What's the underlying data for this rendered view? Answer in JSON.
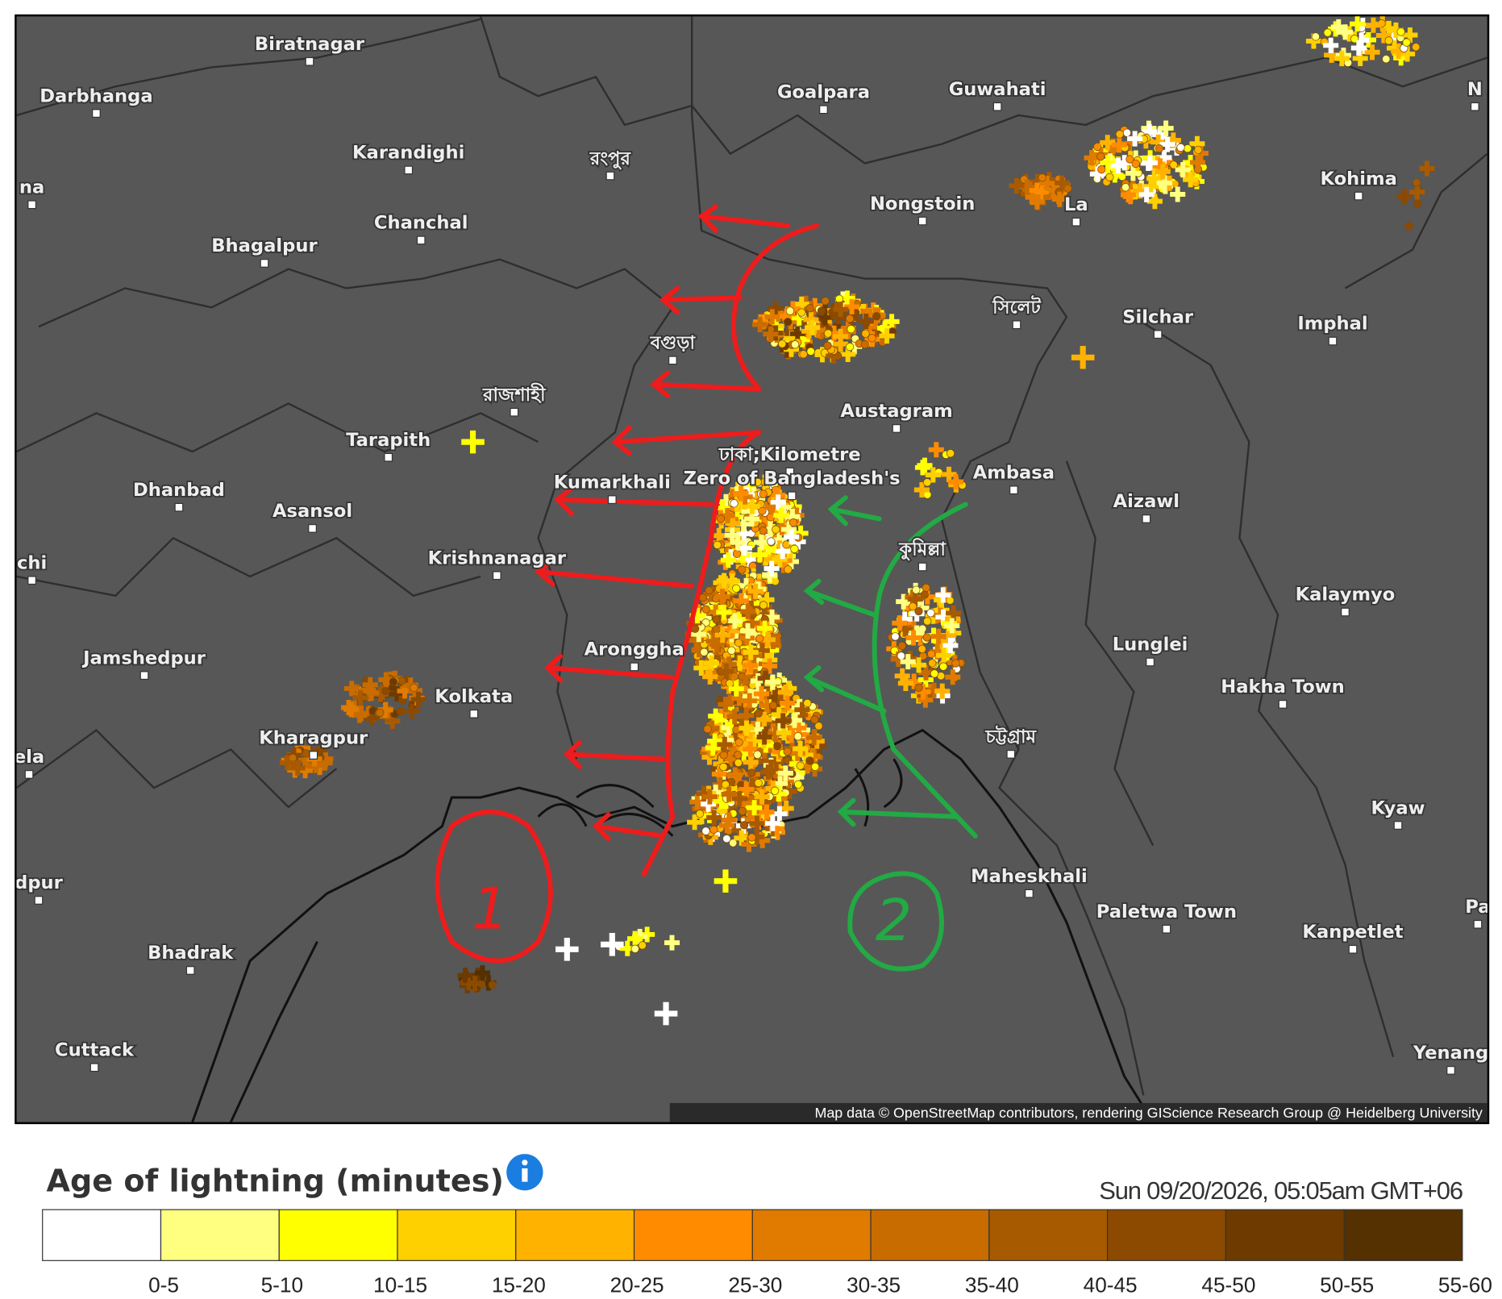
{
  "map": {
    "places": [
      "Biratnagar",
      "Darbhanga",
      "Goalpara",
      "Guwahati",
      "Karandighi",
      "রংপুর",
      "Nongstoin",
      "Kohima",
      "na",
      "Chanchal",
      "Bhagalpur",
      "La",
      "Silchar",
      "Imphal",
      "সিলেট",
      "বগুড়া",
      "রাজশাহী",
      "Austagram",
      "Tarapith",
      "ঢাকা;Kilometre",
      "Zero of Bangladesh's",
      "Kumarkhali",
      "Ambasa",
      "Dhanbad",
      "Asansol",
      "Aizawl",
      "কুমিল্লা",
      "Krishnanagar",
      "chi",
      "Kalaymyo",
      "Jamshedpur",
      "Lunglei",
      "Aronggha",
      "Kolkata",
      "Hakha Town",
      "Kharagpur",
      "চট্টগ্রাম",
      "ela",
      "Kyaw",
      "dpur",
      "Maheskhali",
      "Paletwa Town",
      "Kanpetlet",
      "Bhadrak",
      "Cuttack",
      "Yenang",
      "N",
      "Pa"
    ],
    "attribution": "Map data © OpenStreetMap contributors, rendering GIScience Research Group @ Heidelberg University",
    "annotations": [
      "1",
      "2"
    ]
  },
  "legend": {
    "title": "Age of lightning (minutes)",
    "timestamp": "Sun 09/20/2026, 05:05am GMT+06",
    "labels": [
      "0-5",
      "5-10",
      "10-15",
      "15-20",
      "20-25",
      "25-30",
      "30-35",
      "35-40",
      "40-45",
      "45-50",
      "50-55",
      "55-60"
    ],
    "colors": [
      "#ffffff",
      "#ffff80",
      "#ffff00",
      "#ffd000",
      "#ffb300",
      "#ff8c00",
      "#e07b00",
      "#c86c00",
      "#a85a00",
      "#8c4a00",
      "#6e3a00",
      "#553000"
    ]
  }
}
